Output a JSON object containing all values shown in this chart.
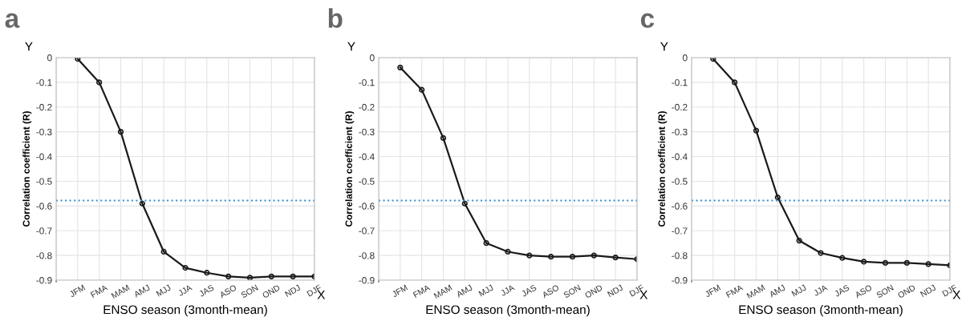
{
  "chart_data": [
    {
      "type": "line",
      "title": "a",
      "xlabel": "ENSO season (3month-mean)",
      "ylabel": "Correlation coefficient (R)",
      "categories": [
        "JFM",
        "FMA",
        "MAM",
        "AMJ",
        "MJJ",
        "JJA",
        "JAS",
        "ASO",
        "SON",
        "OND",
        "NDJ",
        "DJF"
      ],
      "series": [
        {
          "color": "#1a1a1a",
          "values": [
            -0.005,
            -0.1,
            -0.3,
            -0.59,
            -0.785,
            -0.85,
            -0.87,
            -0.885,
            -0.89,
            -0.885,
            -0.885,
            -0.885
          ]
        }
      ],
      "ylim": [
        -0.9,
        0
      ],
      "yticks": [
        -0.9,
        -0.8,
        -0.7,
        -0.6,
        -0.5,
        -0.4,
        -0.3,
        -0.2,
        -0.1,
        0
      ],
      "grid": true,
      "marker": "circle",
      "line_style": "solid",
      "ref_lines": [
        {
          "axis": "y",
          "value": -0.578,
          "color": "#3a8fd0",
          "line_style": "dotted"
        }
      ],
      "annotations": [
        "Y",
        "X"
      ]
    },
    {
      "type": "line",
      "title": "b",
      "xlabel": "ENSO season (3month-mean)",
      "ylabel": "Correlation coefficient (R)",
      "categories": [
        "JFM",
        "FMA",
        "MAM",
        "AMJ",
        "MJJ",
        "JJA",
        "JAS",
        "ASO",
        "SON",
        "OND",
        "NDJ",
        "DJF"
      ],
      "series": [
        {
          "color": "#1a1a1a",
          "values": [
            -0.04,
            -0.13,
            -0.325,
            -0.59,
            -0.75,
            -0.785,
            -0.8,
            -0.805,
            -0.805,
            -0.8,
            -0.808,
            -0.815
          ]
        }
      ],
      "ylim": [
        -0.9,
        0
      ],
      "yticks": [
        -0.9,
        -0.8,
        -0.7,
        -0.6,
        -0.5,
        -0.4,
        -0.3,
        -0.2,
        -0.1,
        0
      ],
      "grid": true,
      "marker": "circle",
      "line_style": "solid",
      "ref_lines": [
        {
          "axis": "y",
          "value": -0.578,
          "color": "#3a8fd0",
          "line_style": "dotted"
        }
      ],
      "annotations": [
        "Y",
        "X"
      ]
    },
    {
      "type": "line",
      "title": "c",
      "xlabel": "ENSO season (3month-mean)",
      "ylabel": "Correlation coefficient (R)",
      "categories": [
        "JFM",
        "FMA",
        "MAM",
        "AMJ",
        "MJJ",
        "JJA",
        "JAS",
        "ASO",
        "SON",
        "OND",
        "NDJ",
        "DJF"
      ],
      "series": [
        {
          "color": "#1a1a1a",
          "values": [
            -0.005,
            -0.1,
            -0.295,
            -0.565,
            -0.74,
            -0.79,
            -0.81,
            -0.825,
            -0.83,
            -0.83,
            -0.835,
            -0.84
          ]
        }
      ],
      "ylim": [
        -0.9,
        0
      ],
      "yticks": [
        -0.9,
        -0.8,
        -0.7,
        -0.6,
        -0.5,
        -0.4,
        -0.3,
        -0.2,
        -0.1,
        0
      ],
      "grid": true,
      "marker": "circle",
      "line_style": "solid",
      "ref_lines": [
        {
          "axis": "y",
          "value": -0.578,
          "color": "#3a8fd0",
          "line_style": "dotted"
        }
      ],
      "annotations": [
        "Y",
        "X"
      ]
    }
  ]
}
